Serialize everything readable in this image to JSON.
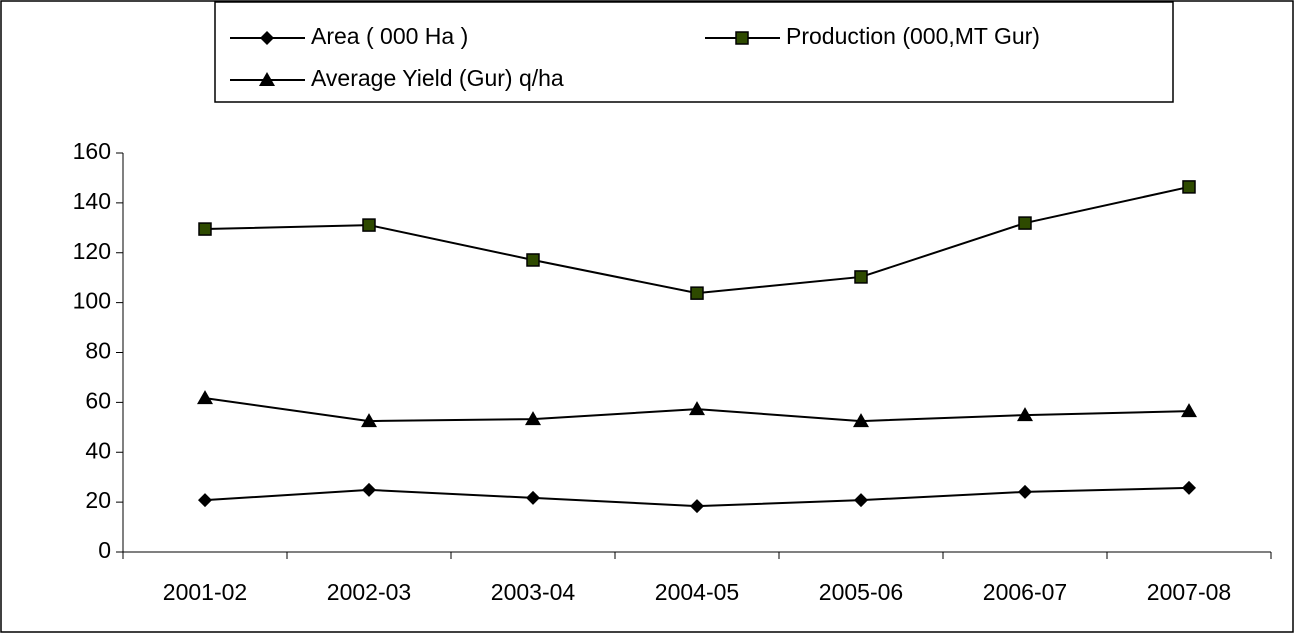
{
  "chart_data": {
    "type": "line",
    "categories": [
      "2001-02",
      "2002-03",
      "2003-04",
      "2004-05",
      "2005-06",
      "2006-07",
      "2007-08"
    ],
    "series": [
      {
        "name": "Area ( 000 Ha )",
        "color": "#000000",
        "marker": "diamond",
        "marker_fill": "#000000",
        "values": [
          20.8,
          24.9,
          21.7,
          18.4,
          20.8,
          24.1,
          25.7
        ]
      },
      {
        "name": "Production (000,MT Gur)",
        "color": "#000000",
        "marker": "square",
        "marker_fill": "#2e4a00",
        "values": [
          129.5,
          131.1,
          117.1,
          103.8,
          110.3,
          131.9,
          146.4
        ]
      },
      {
        "name": "Average Yield (Gur) q/ha",
        "color": "#000000",
        "marker": "triangle",
        "marker_fill": "#000000",
        "values": [
          61.7,
          52.5,
          53.3,
          57.3,
          52.5,
          54.9,
          56.5
        ]
      }
    ],
    "ylim": [
      0,
      160
    ],
    "yticks": [
      0,
      20,
      40,
      60,
      80,
      100,
      120,
      140,
      160
    ],
    "grid": false,
    "legend": "top"
  }
}
